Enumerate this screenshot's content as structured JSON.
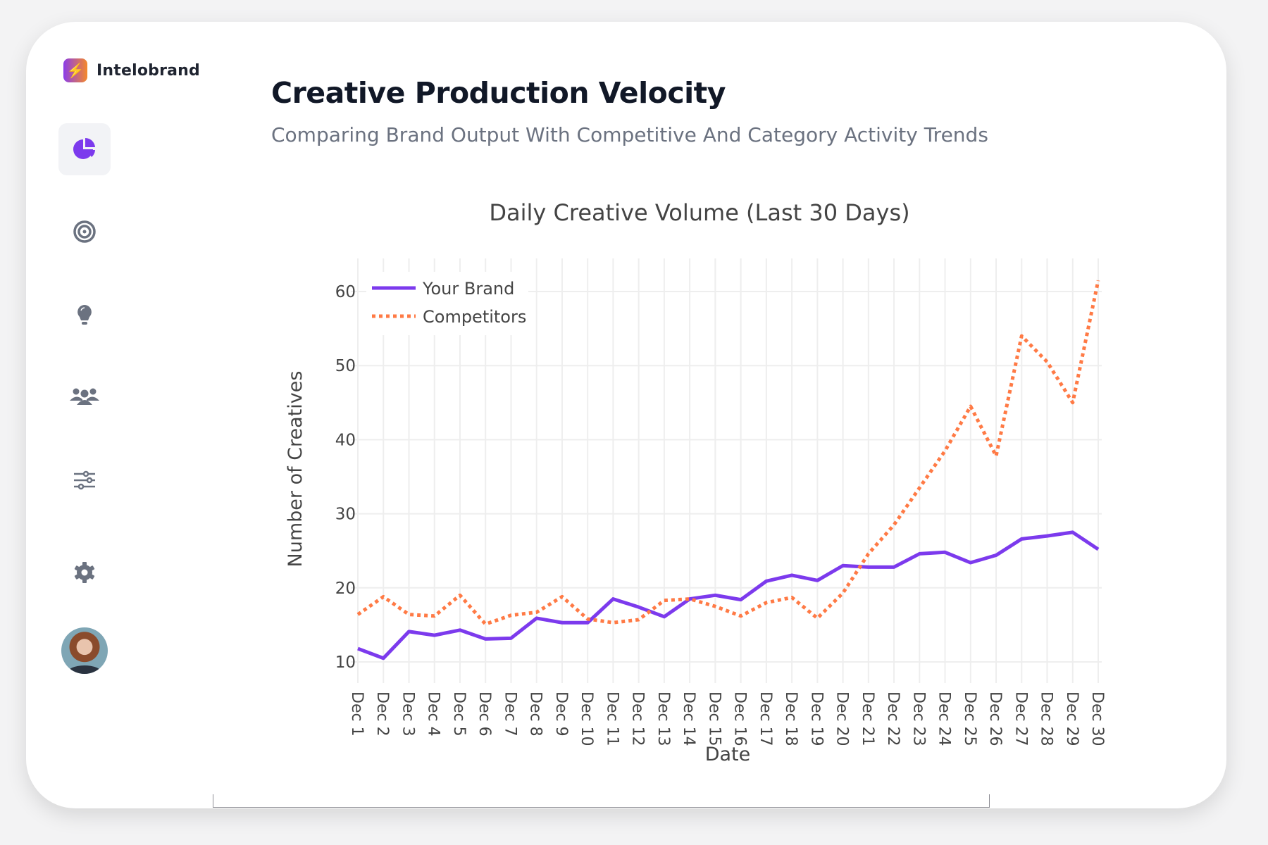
{
  "sidebar": {
    "brand_name": "Intelobrand",
    "logo_icon": "lightning-icon",
    "items": [
      {
        "icon": "pie-chart-icon",
        "active": true
      },
      {
        "icon": "target-icon",
        "active": false
      },
      {
        "icon": "lightbulb-icon",
        "active": false
      },
      {
        "icon": "users-icon",
        "active": false
      },
      {
        "icon": "sliders-icon",
        "active": false
      },
      {
        "icon": "gear-icon",
        "active": false
      }
    ]
  },
  "header": {
    "title": "Creative Production Velocity",
    "subtitle": "Comparing Brand Output With Competitive And Category Activity Trends"
  },
  "chart_data": {
    "type": "line",
    "title": "Daily Creative Volume (Last 30 Days)",
    "xlabel": "Date",
    "ylabel": "Number of Creatives",
    "ylim": [
      8,
      63
    ],
    "yticks": [
      10,
      20,
      30,
      40,
      50,
      60
    ],
    "grid": true,
    "legend_position": "top-left",
    "categories": [
      "Dec 1",
      "Dec 2",
      "Dec 3",
      "Dec 4",
      "Dec 5",
      "Dec 6",
      "Dec 7",
      "Dec 8",
      "Dec 9",
      "Dec 10",
      "Dec 11",
      "Dec 12",
      "Dec 13",
      "Dec 14",
      "Dec 15",
      "Dec 16",
      "Dec 17",
      "Dec 18",
      "Dec 19",
      "Dec 20",
      "Dec 21",
      "Dec 22",
      "Dec 23",
      "Dec 24",
      "Dec 25",
      "Dec 26",
      "Dec 27",
      "Dec 28",
      "Dec 29",
      "Dec 30"
    ],
    "series": [
      {
        "name": "Your Brand",
        "color": "#7c3aed",
        "dash": "solid",
        "values": [
          11.8,
          10.5,
          14.1,
          13.6,
          14.3,
          13.1,
          13.2,
          15.9,
          15.3,
          15.3,
          18.5,
          17.4,
          16.1,
          18.5,
          19.0,
          18.4,
          20.9,
          21.7,
          21.0,
          23.0,
          22.8,
          22.8,
          24.6,
          24.8,
          23.4,
          24.4,
          26.6,
          27.0,
          27.5,
          25.2
        ]
      },
      {
        "name": "Competitors",
        "color": "#ff7a45",
        "dash": "dot",
        "values": [
          16.4,
          18.8,
          16.4,
          16.2,
          19.0,
          15.1,
          16.3,
          16.7,
          18.8,
          15.8,
          15.3,
          15.7,
          18.3,
          18.5,
          17.5,
          16.2,
          18.0,
          18.7,
          15.9,
          19.3,
          24.6,
          28.5,
          33.5,
          38.5,
          44.5,
          37.8,
          54.0,
          50.5,
          45.0,
          61.5
        ]
      }
    ]
  }
}
